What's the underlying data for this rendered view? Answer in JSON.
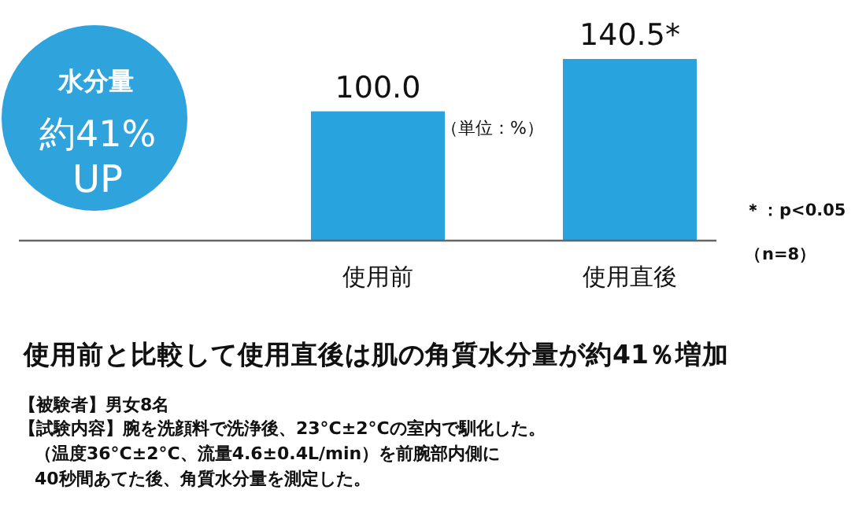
{
  "chart_data": {
    "type": "bar",
    "title": "使用前と比較して使用直後は肌の角質水分量が約41％増加",
    "categories": [
      "使用前",
      "使用直後"
    ],
    "values": [
      100.0,
      140.5
    ],
    "color": "#29a3dd",
    "value_labels": [
      "100.0",
      "140.5*"
    ],
    "annotations": [
      "（単位：%）",
      "水分量",
      "約41%",
      "UP",
      "＊：p<0.05",
      "（n=8）",
      "【被験者】男女8名",
      "【試験内容】腕を洗顔料で洗浄後、23°C±2°Cの室内で馴化した。",
      "（温度36°C±2°C、流量4.6±0.4L/min）を前腕部内側に",
      "40秒間あてた後、角質水分量を測定した。"
    ]
  }
}
